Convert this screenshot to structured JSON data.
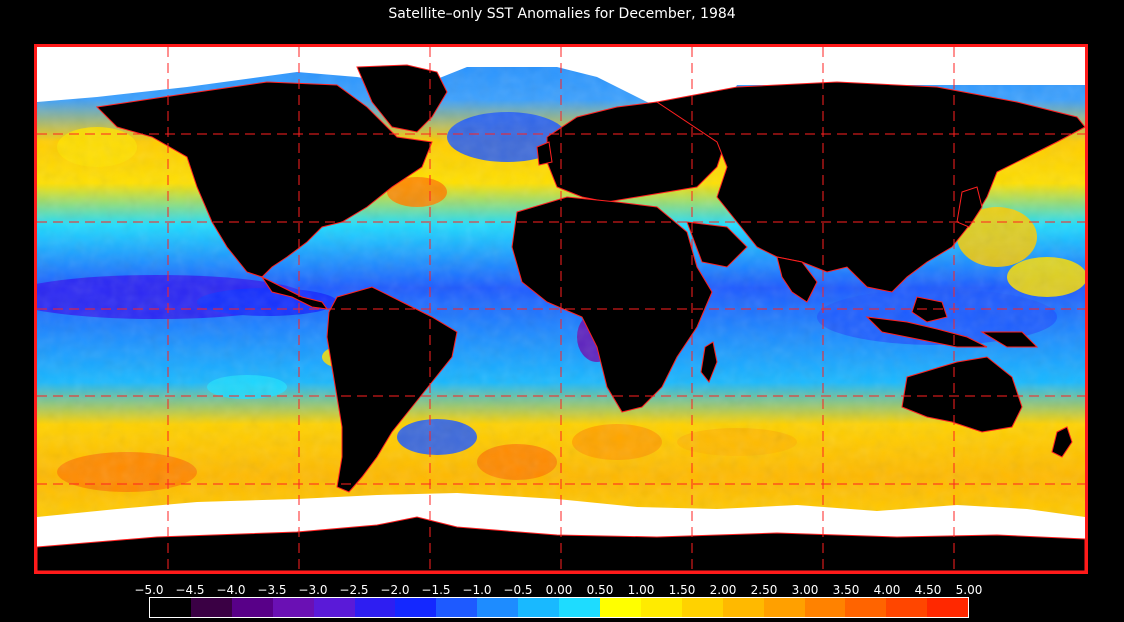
{
  "title": "Satellite–only SST Anomalies for December, 1984",
  "map": {
    "projection": "equirectangular",
    "gridlines": "dashed-red",
    "land_color": "#000000",
    "sea_ice_color": "#ffffff",
    "border_color": "#ff1a1a"
  },
  "colorbar": {
    "labels": [
      "−5.0",
      "−4.5",
      "−4.0",
      "−3.5",
      "−3.0",
      "−2.5",
      "−2.0",
      "−1.5",
      "−1.0",
      "−0.5",
      "0.00",
      "0.50",
      "1.00",
      "1.50",
      "2.00",
      "2.50",
      "3.00",
      "3.50",
      "4.00",
      "4.50",
      "5.00"
    ],
    "colors": [
      "#000000",
      "#3a0044",
      "#580088",
      "#6a10b4",
      "#5a1ad8",
      "#2e1ef2",
      "#1428ff",
      "#1e5aff",
      "#1e8cff",
      "#19b9ff",
      "#1edcff",
      "#ffff00",
      "#ffeb00",
      "#ffd200",
      "#ffb900",
      "#ffa000",
      "#ff8200",
      "#ff6400",
      "#ff4600",
      "#ff2800"
    ]
  }
}
